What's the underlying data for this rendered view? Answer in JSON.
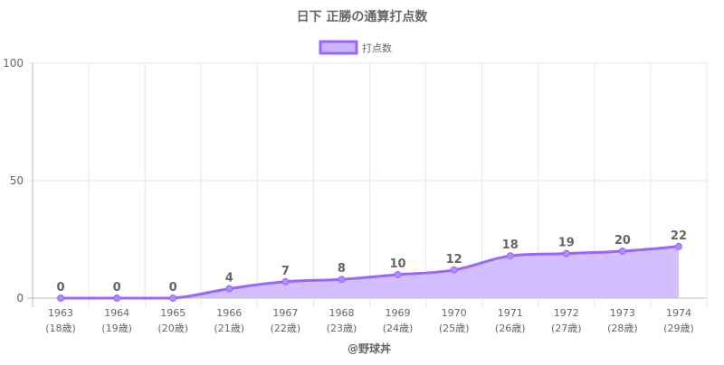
{
  "chart_data": {
    "type": "line",
    "title": "日下 正勝の通算打点数",
    "legend": {
      "label": "打点数",
      "position": "top"
    },
    "categories": [
      "1963",
      "1964",
      "1965",
      "1966",
      "1967",
      "1968",
      "1969",
      "1970",
      "1971",
      "1972",
      "1973",
      "1974"
    ],
    "sublabels": [
      "(18歳)",
      "(19歳)",
      "(20歳)",
      "(21歳)",
      "(22歳)",
      "(23歳)",
      "(24歳)",
      "(25歳)",
      "(26歳)",
      "(27歳)",
      "(28歳)",
      "(29歳)"
    ],
    "values": [
      0,
      0,
      0,
      4,
      7,
      8,
      10,
      12,
      18,
      19,
      20,
      22
    ],
    "ylim": [
      0,
      100
    ],
    "yticks": [
      "0",
      "50",
      "100"
    ],
    "grid": true,
    "fill": true,
    "colors": {
      "line": "#9966ff",
      "fill": "#cbb3ff",
      "text": "#666666",
      "grid": "#e6e6e6"
    }
  },
  "footer": "@野球丼"
}
